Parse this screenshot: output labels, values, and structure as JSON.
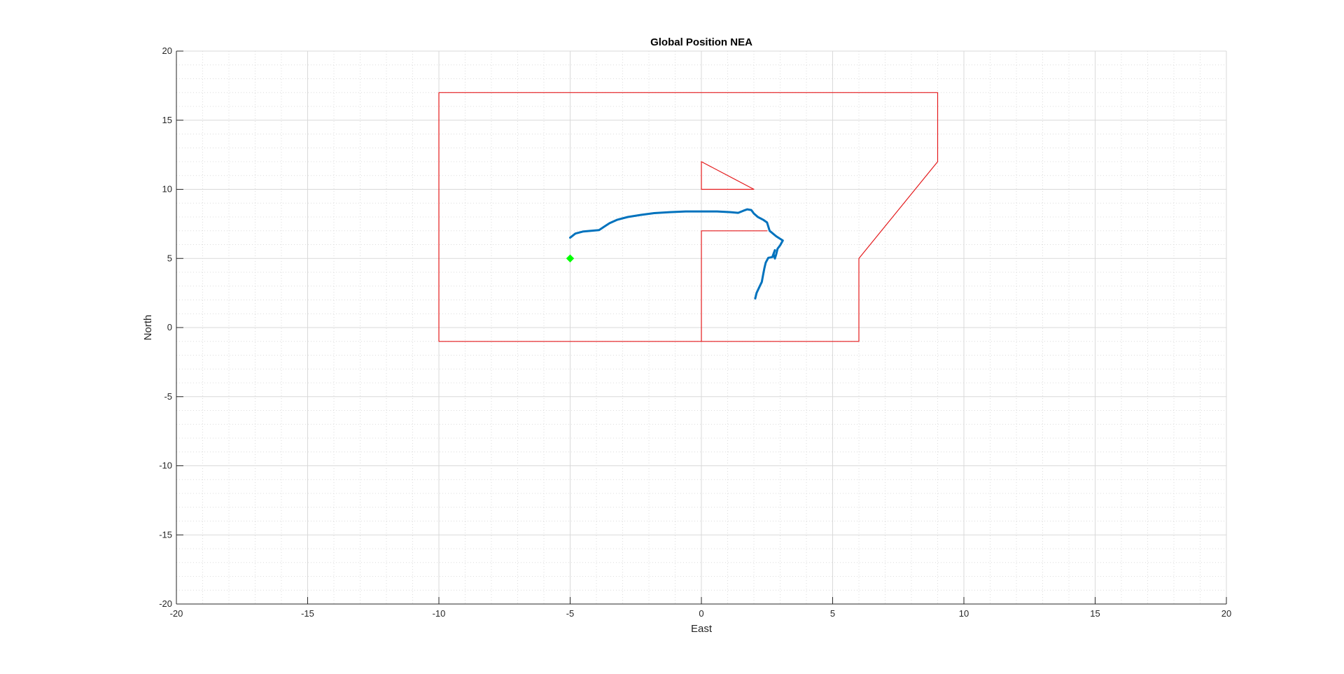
{
  "chart_data": {
    "type": "line",
    "title": "Global Position NEA",
    "xlabel": "East",
    "ylabel": "North",
    "xlim": [
      -20,
      20
    ],
    "ylim": [
      -20,
      20
    ],
    "xticks": [
      -20,
      -15,
      -10,
      -5,
      0,
      5,
      10,
      15,
      20
    ],
    "yticks": [
      -20,
      -15,
      -10,
      -5,
      0,
      5,
      10,
      15,
      20
    ],
    "grid": true,
    "minor_grid": true,
    "legend": "none",
    "series": [
      {
        "kind": "boundary",
        "color": "#e41a1c",
        "x": [
          -10,
          9,
          9,
          6,
          6,
          -10,
          -10
        ],
        "y": [
          17,
          17,
          12,
          5,
          -1,
          -1,
          17
        ]
      },
      {
        "kind": "obstacle",
        "color": "#e41a1c",
        "x": [
          0,
          2,
          0,
          0
        ],
        "y": [
          12,
          10,
          10,
          12
        ]
      },
      {
        "kind": "obstacle",
        "color": "#e41a1c",
        "x": [
          0,
          0,
          2.5
        ],
        "y": [
          -1,
          7,
          7
        ]
      },
      {
        "kind": "trajectory",
        "color": "#0072bd",
        "x": [
          -5,
          -4.8,
          -4.5,
          -4.2,
          -3.9,
          -3.7,
          -3.5,
          -3.2,
          -2.8,
          -2.3,
          -1.8,
          -1.2,
          -0.6,
          0,
          0.6,
          1.1,
          1.4,
          1.6,
          1.75,
          1.9,
          2.0,
          2.15,
          2.35,
          2.5,
          2.6,
          2.85,
          3.1,
          3.0,
          2.9,
          2.85,
          2.8,
          2.75,
          2.8,
          2.7,
          2.55,
          2.45,
          2.4,
          2.35,
          2.3,
          2.2,
          2.1,
          2.05
        ],
        "y": [
          6.5,
          6.8,
          6.95,
          7.0,
          7.05,
          7.3,
          7.55,
          7.8,
          8.0,
          8.15,
          8.28,
          8.35,
          8.4,
          8.4,
          8.4,
          8.35,
          8.3,
          8.45,
          8.55,
          8.5,
          8.25,
          8.0,
          7.8,
          7.6,
          7.0,
          6.6,
          6.3,
          5.95,
          5.7,
          5.3,
          5.0,
          5.3,
          5.6,
          5.1,
          5.05,
          4.7,
          4.3,
          3.8,
          3.3,
          2.9,
          2.5,
          2.1
        ]
      },
      {
        "kind": "marker",
        "marker": "diamond",
        "color": "#00ff00",
        "x": [
          -5
        ],
        "y": [
          5
        ]
      }
    ]
  }
}
